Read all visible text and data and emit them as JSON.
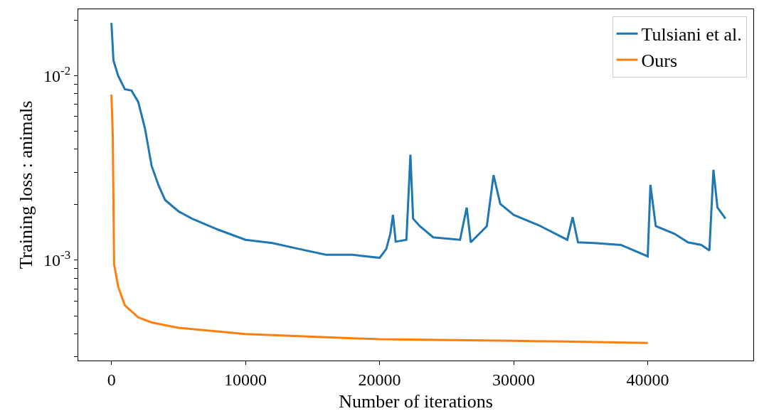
{
  "chart_data": {
    "type": "line",
    "xlabel": "Number of iterations",
    "ylabel": "Training loss : animals",
    "log": "y",
    "legend": "top right",
    "marker": "none",
    "line_style": "solid",
    "xlim": [
      -2475,
      47876
    ],
    "ylim": [
      0.000286,
      0.0229
    ],
    "xticks": [
      0,
      10000,
      20000,
      30000,
      40000
    ],
    "yticks": [
      {
        "value": 0.0003,
        "label": null
      },
      {
        "value": 0.0004,
        "label": null
      },
      {
        "value": 0.0005,
        "label": null
      },
      {
        "value": 0.0006,
        "label": null
      },
      {
        "value": 0.0007,
        "label": null
      },
      {
        "value": 0.0008,
        "label": null
      },
      {
        "value": 0.0009,
        "label": null
      },
      {
        "value": 0.001,
        "label": "10$^{-3}$"
      },
      {
        "value": 0.002,
        "label": null
      },
      {
        "value": 0.003,
        "label": null
      },
      {
        "value": 0.004,
        "label": null
      },
      {
        "value": 0.005,
        "label": null
      },
      {
        "value": 0.006,
        "label": null
      },
      {
        "value": 0.007,
        "label": null
      },
      {
        "value": 0.008,
        "label": null
      },
      {
        "value": 0.009,
        "label": null
      },
      {
        "value": 0.01,
        "label": "10$^{-2}$"
      },
      {
        "value": 0.02,
        "label": null
      }
    ],
    "series": [
      {
        "name": "Tulsiani et al.",
        "color": "#1f77b4",
        "x": [
          0,
          150,
          500,
          1000,
          1500,
          2000,
          2500,
          3000,
          3500,
          4000,
          5000,
          6000,
          8000,
          10000,
          12000,
          14000,
          16000,
          18000,
          20000,
          20500,
          20800,
          21000,
          21200,
          22000,
          22300,
          22500,
          23000,
          24000,
          26000,
          26500,
          26800,
          28000,
          28500,
          29000,
          30000,
          32000,
          34000,
          34400,
          34800,
          36000,
          38000,
          40000,
          40200,
          40600,
          42000,
          43000,
          44000,
          44600,
          44900,
          45200,
          45800
        ],
        "values": [
          0.0193,
          0.0121,
          0.01,
          0.00845,
          0.0083,
          0.0072,
          0.00518,
          0.00324,
          0.00256,
          0.00212,
          0.00184,
          0.00168,
          0.00146,
          0.00129,
          0.00124,
          0.00115,
          0.00107,
          0.00107,
          0.00103,
          0.00115,
          0.00139,
          0.00176,
          0.00126,
          0.00129,
          0.00373,
          0.00168,
          0.00153,
          0.00133,
          0.00129,
          0.00193,
          0.00125,
          0.00153,
          0.00289,
          0.00202,
          0.00176,
          0.00153,
          0.00129,
          0.00171,
          0.00125,
          0.00124,
          0.00121,
          0.00105,
          0.00256,
          0.00153,
          0.00139,
          0.00125,
          0.00121,
          0.00113,
          0.00309,
          0.00193,
          0.00168
        ]
      },
      {
        "name": "Ours",
        "color": "#ff7f0e",
        "x": [
          0,
          100,
          200,
          500,
          1000,
          2000,
          3000,
          5000,
          10000,
          20000,
          30000,
          40000
        ],
        "values": [
          0.0079,
          0.0047,
          0.00095,
          0.00072,
          0.00057,
          0.00049,
          0.00046,
          0.00043,
          0.000398,
          0.000373,
          0.000366,
          0.000356
        ]
      }
    ]
  }
}
